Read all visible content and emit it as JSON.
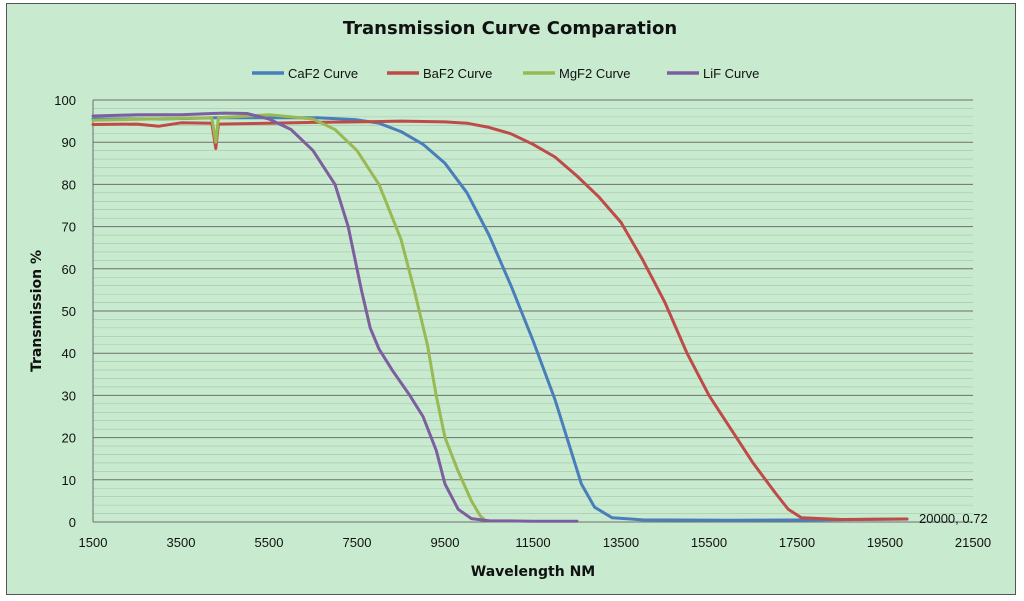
{
  "chart_data": {
    "type": "line",
    "title": "Transmission Curve Comparation",
    "xlabel": "Wavelength NM",
    "ylabel": "Transmission %",
    "xlim": [
      1500,
      21500
    ],
    "ylim": [
      0,
      100
    ],
    "x_ticks": [
      "1500",
      "3500",
      "5500",
      "7500",
      "9500",
      "11500",
      "13500",
      "15500",
      "17500",
      "19500",
      "21500"
    ],
    "y_ticks": [
      "0",
      "10",
      "20",
      "30",
      "40",
      "50",
      "60",
      "70",
      "80",
      "90",
      "100"
    ],
    "grid": true,
    "legend_position": "top",
    "series": [
      {
        "name": "CaF2 Curve",
        "color": "#4a7ebb",
        "points": [
          [
            1500,
            95.5
          ],
          [
            3000,
            95.5
          ],
          [
            4300,
            95.8
          ],
          [
            5500,
            95.8
          ],
          [
            6600,
            95.8
          ],
          [
            7500,
            95.3
          ],
          [
            8000,
            94.5
          ],
          [
            8500,
            92.5
          ],
          [
            9000,
            89.5
          ],
          [
            9500,
            85
          ],
          [
            10000,
            78
          ],
          [
            10500,
            68
          ],
          [
            11000,
            56
          ],
          [
            11500,
            43
          ],
          [
            12000,
            29
          ],
          [
            12300,
            19
          ],
          [
            12600,
            9
          ],
          [
            12900,
            3.5
          ],
          [
            13300,
            1
          ],
          [
            14000,
            0.5
          ],
          [
            16000,
            0.4
          ],
          [
            18000,
            0.5
          ],
          [
            20000,
            0.72
          ]
        ]
      },
      {
        "name": "BaF2 Curve",
        "color": "#be4b48",
        "points": [
          [
            1500,
            94.2
          ],
          [
            2500,
            94.3
          ],
          [
            3000,
            93.8
          ],
          [
            3500,
            94.6
          ],
          [
            4200,
            94.5
          ],
          [
            4290,
            88.5
          ],
          [
            4350,
            94.3
          ],
          [
            5500,
            94.5
          ],
          [
            6500,
            94.7
          ],
          [
            7500,
            94.8
          ],
          [
            8500,
            95
          ],
          [
            9500,
            94.8
          ],
          [
            10000,
            94.5
          ],
          [
            10500,
            93.5
          ],
          [
            11000,
            92
          ],
          [
            11500,
            89.5
          ],
          [
            12000,
            86.5
          ],
          [
            12500,
            82
          ],
          [
            13000,
            77
          ],
          [
            13500,
            71
          ],
          [
            14000,
            62
          ],
          [
            14500,
            52
          ],
          [
            15000,
            40
          ],
          [
            15500,
            30
          ],
          [
            16000,
            22
          ],
          [
            16500,
            14
          ],
          [
            17000,
            7
          ],
          [
            17300,
            3
          ],
          [
            17600,
            1
          ],
          [
            18500,
            0.6
          ],
          [
            20000,
            0.72
          ]
        ]
      },
      {
        "name": "MgF2 Curve",
        "color": "#98b954",
        "points": [
          [
            1500,
            95.2
          ],
          [
            4200,
            95.8
          ],
          [
            4290,
            90
          ],
          [
            4350,
            95.8
          ],
          [
            5500,
            96.5
          ],
          [
            6500,
            95.5
          ],
          [
            7000,
            93
          ],
          [
            7500,
            88
          ],
          [
            8000,
            80
          ],
          [
            8500,
            67
          ],
          [
            8800,
            55
          ],
          [
            9100,
            42
          ],
          [
            9300,
            30
          ],
          [
            9500,
            20
          ],
          [
            9800,
            12
          ],
          [
            10100,
            5
          ],
          [
            10300,
            1.5
          ],
          [
            10400,
            0.5
          ]
        ]
      },
      {
        "name": "LiF Curve",
        "color": "#7d5fa0",
        "points": [
          [
            1500,
            96.2
          ],
          [
            2500,
            96.5
          ],
          [
            3500,
            96.5
          ],
          [
            4200,
            96.8
          ],
          [
            4500,
            96.9
          ],
          [
            5000,
            96.8
          ],
          [
            5500,
            95.5
          ],
          [
            6000,
            93
          ],
          [
            6500,
            88
          ],
          [
            7000,
            80
          ],
          [
            7300,
            70
          ],
          [
            7600,
            55
          ],
          [
            7800,
            46
          ],
          [
            8000,
            41
          ],
          [
            8300,
            36
          ],
          [
            8700,
            30
          ],
          [
            9000,
            25
          ],
          [
            9300,
            17
          ],
          [
            9500,
            9
          ],
          [
            9800,
            3
          ],
          [
            10100,
            0.8
          ],
          [
            10500,
            0.3
          ],
          [
            11500,
            0.2
          ],
          [
            12500,
            0.2
          ]
        ]
      }
    ],
    "annotations": [
      {
        "x": 20000,
        "y": 0.72,
        "text": "20000, 0.72"
      }
    ]
  }
}
